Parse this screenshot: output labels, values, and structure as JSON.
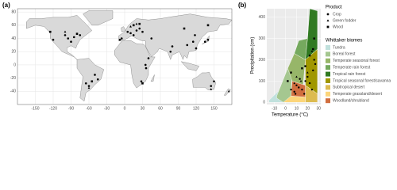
{
  "chart_data": [
    {
      "type": "scatter",
      "panel_label": "(a)",
      "xlim": [
        -180,
        180
      ],
      "ylim": [
        -60,
        85
      ],
      "xticks": [
        -150,
        -120,
        -90,
        -60,
        -30,
        0,
        30,
        60,
        90,
        120,
        150
      ],
      "yticks": [
        -40,
        -20,
        0,
        20,
        40,
        60,
        80
      ],
      "grid": true,
      "series": [
        {
          "marker": "circle",
          "color": "#000000",
          "x": [
            -95,
            -90,
            -85,
            -100,
            -120,
            -75,
            -50,
            -45,
            -60,
            -65,
            5,
            10,
            15,
            20,
            25,
            30,
            -5,
            35,
            40,
            77,
            80,
            105,
            115,
            120,
            135,
            140,
            145,
            150,
            28,
            36,
            45,
            -8,
            118
          ],
          "y": [
            40,
            35,
            42,
            45,
            38,
            45,
            -15,
            -22,
            -32,
            -28,
            50,
            48,
            45,
            52,
            55,
            50,
            40,
            0,
            10,
            20,
            28,
            30,
            35,
            25,
            35,
            38,
            -32,
            -25,
            -25,
            -5,
            40,
            38,
            45
          ]
        },
        {
          "marker": "triangle",
          "color": "#000000",
          "x": [
            -100,
            10,
            20,
            -60,
            145,
            175
          ],
          "y": [
            50,
            58,
            62,
            -35,
            -37,
            -40
          ]
        },
        {
          "marker": "square",
          "color": "#000000",
          "x": [
            -125,
            -80,
            15,
            25,
            100,
            140,
            -55,
            30
          ],
          "y": [
            50,
            47,
            60,
            62,
            55,
            60,
            -25,
            -28
          ]
        }
      ]
    },
    {
      "type": "scatter",
      "panel_label": "(b)",
      "x_label": "Temperature (°C)",
      "y_label": "Precipitation (cm)",
      "xlim": [
        -17,
        32
      ],
      "ylim": [
        -10,
        440
      ],
      "xticks": [
        -10,
        0,
        10,
        20,
        30
      ],
      "yticks": [
        0,
        100,
        200,
        300,
        400
      ],
      "grid": true,
      "legend_title": "Product",
      "biome_legend_title": "Whittaker biomes",
      "biomes": [
        {
          "name": "Tundra",
          "color": "#C1E1DD",
          "temps": [
            -15,
            -2,
            -5,
            -15
          ],
          "precip": [
            0,
            0,
            60,
            10
          ]
        },
        {
          "name": "Boreal forest",
          "color": "#A5C790",
          "temps": [
            -8,
            -2,
            5,
            6,
            2,
            -8
          ],
          "precip": [
            20,
            0,
            20,
            150,
            160,
            30
          ]
        },
        {
          "name": "Temperate seasonal forest",
          "color": "#97B669",
          "temps": [
            2,
            6,
            16,
            18,
            8
          ],
          "precip": [
            160,
            100,
            80,
            200,
            230
          ]
        },
        {
          "name": "Temperate rain forest",
          "color": "#75A95E",
          "temps": [
            8,
            18,
            20,
            12
          ],
          "precip": [
            230,
            200,
            300,
            290
          ]
        },
        {
          "name": "Tropical rain forest",
          "color": "#317A22",
          "temps": [
            18,
            29,
            29,
            22,
            20
          ],
          "precip": [
            200,
            250,
            430,
            440,
            300
          ]
        },
        {
          "name": "Tropical seasonal forest/savanna",
          "color": "#A09700",
          "temps": [
            18,
            29,
            29,
            18
          ],
          "precip": [
            80,
            40,
            250,
            200
          ]
        },
        {
          "name": "Subtropical desert",
          "color": "#DCBB50",
          "temps": [
            18,
            29,
            29,
            18
          ],
          "precip": [
            0,
            0,
            40,
            80
          ]
        },
        {
          "name": "Temperate grassland/desert",
          "color": "#FCD57A",
          "temps": [
            -2,
            18,
            18,
            5
          ],
          "precip": [
            0,
            0,
            25,
            30
          ]
        },
        {
          "name": "Woodland/shrubland",
          "color": "#D16E3F",
          "temps": [
            5,
            18,
            18,
            6
          ],
          "precip": [
            30,
            25,
            80,
            100
          ]
        }
      ],
      "series": [
        {
          "name": "Crop",
          "marker": "circle",
          "color": "#000000",
          "x": [
            5,
            8,
            10,
            12,
            15,
            18,
            20,
            22,
            25,
            26,
            13,
            17,
            24,
            27,
            9
          ],
          "y": [
            60,
            50,
            80,
            70,
            60,
            100,
            120,
            90,
            150,
            200,
            110,
            40,
            60,
            180,
            40
          ]
        },
        {
          "name": "Green fodder",
          "marker": "triangle",
          "color": "#000000",
          "x": [
            8,
            10,
            14,
            20,
            24
          ],
          "y": [
            90,
            120,
            100,
            140,
            240
          ]
        },
        {
          "name": "Wood",
          "marker": "square",
          "color": "#000000",
          "x": [
            2,
            5,
            15,
            18,
            22,
            25,
            26
          ],
          "y": [
            100,
            140,
            160,
            170,
            220,
            250,
            300
          ]
        }
      ]
    }
  ]
}
